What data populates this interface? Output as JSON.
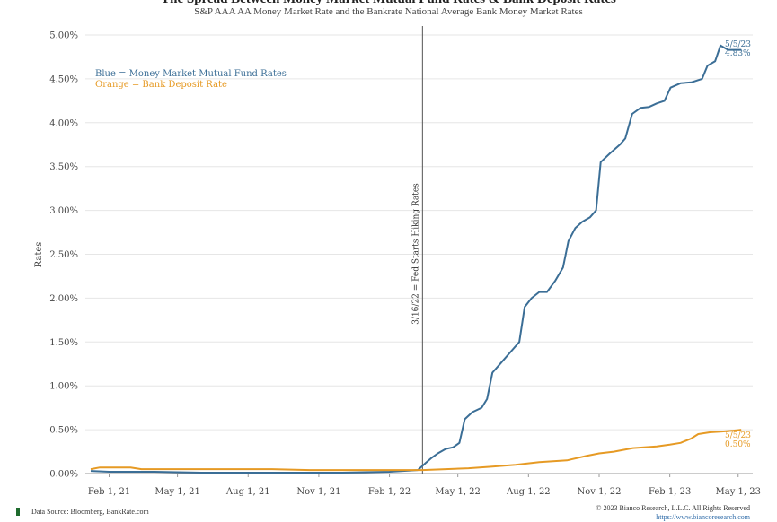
{
  "chart_data": {
    "type": "line",
    "title": "The Spread Between Money Market Mutual Fund Rates & Bank Deposit Rates",
    "subtitle": "S&P AAA AA Money Market Rate and the Bankrate National Average Bank Money Market Rates",
    "ylabel": "Rates",
    "ylim": [
      0,
      5
    ],
    "yticks": [
      "0.00%",
      "0.50%",
      "1.00%",
      "1.50%",
      "2.00%",
      "2.50%",
      "3.00%",
      "3.50%",
      "4.00%",
      "4.50%",
      "5.00%"
    ],
    "xticks": [
      "Feb 1, 21",
      "May 1, 21",
      "Aug 1, 21",
      "Nov 1, 21",
      "Feb 1, 22",
      "May 1, 22",
      "Aug 1, 22",
      "Nov 1, 22",
      "Feb 1, 23",
      "May 1, 23"
    ],
    "xlim": [
      "2021-01-01",
      "2023-05-20"
    ],
    "grid": "horizontal",
    "legend": [
      {
        "text": "Blue = Money Market Mutual Fund Rates",
        "color": "#3b6e96"
      },
      {
        "text": "Orange = Bank Deposit Rate",
        "color": "#e69a24"
      }
    ],
    "annotation": {
      "date": "2022-03-16",
      "text": "3/16/22 = Fed Starts Hiking Rates"
    },
    "series": [
      {
        "color": "#3b6e96",
        "end_label": [
          "5/5/23",
          "4.83%"
        ],
        "points": [
          [
            "2021-01-08",
            0.03
          ],
          [
            "2021-02-01",
            0.02
          ],
          [
            "2021-04-01",
            0.02
          ],
          [
            "2021-06-01",
            0.01
          ],
          [
            "2021-08-01",
            0.01
          ],
          [
            "2021-10-01",
            0.01
          ],
          [
            "2021-12-01",
            0.01
          ],
          [
            "2022-02-01",
            0.02
          ],
          [
            "2022-03-10",
            0.04
          ],
          [
            "2022-03-20",
            0.12
          ],
          [
            "2022-03-28",
            0.18
          ],
          [
            "2022-04-05",
            0.23
          ],
          [
            "2022-04-15",
            0.28
          ],
          [
            "2022-04-25",
            0.3
          ],
          [
            "2022-05-03",
            0.35
          ],
          [
            "2022-05-10",
            0.62
          ],
          [
            "2022-05-20",
            0.7
          ],
          [
            "2022-06-01",
            0.75
          ],
          [
            "2022-06-08",
            0.85
          ],
          [
            "2022-06-15",
            1.15
          ],
          [
            "2022-06-25",
            1.25
          ],
          [
            "2022-07-10",
            1.4
          ],
          [
            "2022-07-20",
            1.5
          ],
          [
            "2022-07-27",
            1.9
          ],
          [
            "2022-08-05",
            2.0
          ],
          [
            "2022-08-15",
            2.07
          ],
          [
            "2022-08-25",
            2.07
          ],
          [
            "2022-09-05",
            2.2
          ],
          [
            "2022-09-15",
            2.35
          ],
          [
            "2022-09-22",
            2.65
          ],
          [
            "2022-10-01",
            2.8
          ],
          [
            "2022-10-10",
            2.87
          ],
          [
            "2022-10-20",
            2.92
          ],
          [
            "2022-10-28",
            3.0
          ],
          [
            "2022-11-03",
            3.55
          ],
          [
            "2022-11-15",
            3.65
          ],
          [
            "2022-11-28",
            3.75
          ],
          [
            "2022-12-05",
            3.82
          ],
          [
            "2022-12-14",
            4.1
          ],
          [
            "2022-12-25",
            4.17
          ],
          [
            "2023-01-05",
            4.18
          ],
          [
            "2023-01-15",
            4.22
          ],
          [
            "2023-01-25",
            4.25
          ],
          [
            "2023-02-02",
            4.4
          ],
          [
            "2023-02-15",
            4.45
          ],
          [
            "2023-03-01",
            4.46
          ],
          [
            "2023-03-15",
            4.5
          ],
          [
            "2023-03-22",
            4.65
          ],
          [
            "2023-04-01",
            4.7
          ],
          [
            "2023-04-08",
            4.88
          ],
          [
            "2023-04-18",
            4.83
          ],
          [
            "2023-05-05",
            4.83
          ]
        ]
      },
      {
        "color": "#e69a24",
        "end_label": [
          "5/5/23",
          "0.50%"
        ],
        "points": [
          [
            "2021-01-08",
            0.05
          ],
          [
            "2021-01-20",
            0.07
          ],
          [
            "2021-03-01",
            0.07
          ],
          [
            "2021-03-15",
            0.05
          ],
          [
            "2021-06-01",
            0.05
          ],
          [
            "2021-09-01",
            0.05
          ],
          [
            "2021-10-20",
            0.04
          ],
          [
            "2021-12-01",
            0.04
          ],
          [
            "2022-02-01",
            0.04
          ],
          [
            "2022-03-16",
            0.04
          ],
          [
            "2022-04-15",
            0.05
          ],
          [
            "2022-05-15",
            0.06
          ],
          [
            "2022-06-15",
            0.08
          ],
          [
            "2022-07-15",
            0.1
          ],
          [
            "2022-08-15",
            0.13
          ],
          [
            "2022-09-20",
            0.15
          ],
          [
            "2022-10-15",
            0.2
          ],
          [
            "2022-11-01",
            0.23
          ],
          [
            "2022-11-20",
            0.25
          ],
          [
            "2022-12-15",
            0.29
          ],
          [
            "2023-01-15",
            0.31
          ],
          [
            "2023-02-01",
            0.33
          ],
          [
            "2023-02-15",
            0.35
          ],
          [
            "2023-03-01",
            0.4
          ],
          [
            "2023-03-10",
            0.45
          ],
          [
            "2023-03-25",
            0.47
          ],
          [
            "2023-04-10",
            0.48
          ],
          [
            "2023-04-25",
            0.49
          ],
          [
            "2023-05-05",
            0.5
          ]
        ]
      }
    ]
  },
  "footer": {
    "source": "Data Source: Bloomberg, BankRate.com",
    "copyright": "© 2023 Bianco Research, L.L.C. All Rights Reserved",
    "url": "https://www.biancoresearch.com"
  }
}
